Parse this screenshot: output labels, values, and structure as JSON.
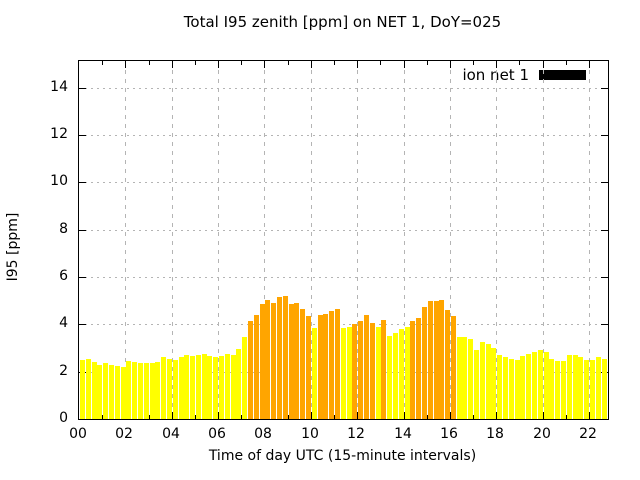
{
  "window": {
    "title": "Total I95 zenith [ppm] on NET 1, DoY=025"
  },
  "chart_data": {
    "type": "bar",
    "title": "Total I95 zenith [ppm] on NET 1, DoY=025",
    "xlabel": "Time of day UTC (15-minute intervals)",
    "ylabel": "I95 [ppm]",
    "ylim": [
      0,
      15.13
    ],
    "yticks": [
      0,
      2,
      4,
      6,
      8,
      10,
      12,
      14
    ],
    "xticks": [
      {
        "label": "00",
        "hour": 0
      },
      {
        "label": "02",
        "hour": 2
      },
      {
        "label": "04",
        "hour": 4
      },
      {
        "label": "06",
        "hour": 6
      },
      {
        "label": "08",
        "hour": 8
      },
      {
        "label": "10",
        "hour": 10
      },
      {
        "label": "12",
        "hour": 12
      },
      {
        "label": "14",
        "hour": 14
      },
      {
        "label": "16",
        "hour": 16
      },
      {
        "label": "18",
        "hour": 18
      },
      {
        "label": "20",
        "hour": 20
      },
      {
        "label": "22",
        "hour": 22
      }
    ],
    "x_hours_span": 22.82,
    "bar_interval_minutes": 15,
    "grid": true,
    "legend": {
      "label": "ion net 1",
      "swatch_color": "#000000",
      "position": "top-right"
    },
    "colors": {
      "y": "#ffff00",
      "o": "#ffa500"
    },
    "series": [
      {
        "name": "ion net 1",
        "points": [
          [
            "00:00",
            2.5,
            "y"
          ],
          [
            "00:15",
            2.55,
            "y"
          ],
          [
            "00:30",
            2.4,
            "y"
          ],
          [
            "00:45",
            2.3,
            "y"
          ],
          [
            "01:00",
            2.35,
            "y"
          ],
          [
            "01:15",
            2.3,
            "y"
          ],
          [
            "01:30",
            2.25,
            "y"
          ],
          [
            "01:45",
            2.2,
            "y"
          ],
          [
            "02:00",
            2.45,
            "y"
          ],
          [
            "02:15",
            2.4,
            "y"
          ],
          [
            "02:30",
            2.35,
            "y"
          ],
          [
            "02:45",
            2.35,
            "y"
          ],
          [
            "03:00",
            2.35,
            "y"
          ],
          [
            "03:15",
            2.4,
            "y"
          ],
          [
            "03:30",
            2.6,
            "y"
          ],
          [
            "03:45",
            2.55,
            "y"
          ],
          [
            "04:00",
            2.5,
            "y"
          ],
          [
            "04:15",
            2.6,
            "y"
          ],
          [
            "04:30",
            2.7,
            "y"
          ],
          [
            "04:45",
            2.65,
            "y"
          ],
          [
            "05:00",
            2.7,
            "y"
          ],
          [
            "05:15",
            2.75,
            "y"
          ],
          [
            "05:30",
            2.65,
            "y"
          ],
          [
            "05:45",
            2.6,
            "y"
          ],
          [
            "06:00",
            2.65,
            "y"
          ],
          [
            "06:15",
            2.75,
            "y"
          ],
          [
            "06:30",
            2.7,
            "y"
          ],
          [
            "06:45",
            2.95,
            "y"
          ],
          [
            "07:00",
            3.45,
            "y"
          ],
          [
            "07:15",
            4.15,
            "o"
          ],
          [
            "07:30",
            4.4,
            "o"
          ],
          [
            "07:45",
            4.85,
            "o"
          ],
          [
            "08:00",
            5.05,
            "o"
          ],
          [
            "08:15",
            4.9,
            "o"
          ],
          [
            "08:30",
            5.15,
            "o"
          ],
          [
            "08:45",
            5.2,
            "o"
          ],
          [
            "09:00",
            4.85,
            "o"
          ],
          [
            "09:15",
            4.9,
            "o"
          ],
          [
            "09:30",
            4.65,
            "o"
          ],
          [
            "09:45",
            4.35,
            "o"
          ],
          [
            "10:00",
            3.85,
            "y"
          ],
          [
            "10:15",
            4.4,
            "o"
          ],
          [
            "10:30",
            4.45,
            "o"
          ],
          [
            "10:45",
            4.55,
            "o"
          ],
          [
            "11:00",
            4.65,
            "o"
          ],
          [
            "11:15",
            3.85,
            "y"
          ],
          [
            "11:30",
            3.9,
            "y"
          ],
          [
            "11:45",
            4.0,
            "o"
          ],
          [
            "12:00",
            4.15,
            "o"
          ],
          [
            "12:15",
            4.4,
            "o"
          ],
          [
            "12:30",
            4.05,
            "o"
          ],
          [
            "12:45",
            3.9,
            "y"
          ],
          [
            "13:00",
            4.2,
            "o"
          ],
          [
            "13:15",
            3.5,
            "y"
          ],
          [
            "13:30",
            3.65,
            "y"
          ],
          [
            "13:45",
            3.8,
            "y"
          ],
          [
            "14:00",
            3.9,
            "y"
          ],
          [
            "14:15",
            4.15,
            "o"
          ],
          [
            "14:30",
            4.25,
            "o"
          ],
          [
            "14:45",
            4.75,
            "o"
          ],
          [
            "15:00",
            5.0,
            "o"
          ],
          [
            "15:15",
            5.0,
            "o"
          ],
          [
            "15:30",
            5.05,
            "o"
          ],
          [
            "15:45",
            4.6,
            "o"
          ],
          [
            "16:00",
            4.35,
            "o"
          ],
          [
            "16:15",
            3.45,
            "y"
          ],
          [
            "16:30",
            3.45,
            "y"
          ],
          [
            "16:45",
            3.4,
            "y"
          ],
          [
            "17:00",
            2.9,
            "y"
          ],
          [
            "17:15",
            3.25,
            "y"
          ],
          [
            "17:30",
            3.15,
            "y"
          ],
          [
            "17:45",
            3.0,
            "y"
          ],
          [
            "18:00",
            2.7,
            "y"
          ],
          [
            "18:15",
            2.6,
            "y"
          ],
          [
            "18:30",
            2.55,
            "y"
          ],
          [
            "18:45",
            2.5,
            "y"
          ],
          [
            "19:00",
            2.65,
            "y"
          ],
          [
            "19:15",
            2.75,
            "y"
          ],
          [
            "19:30",
            2.85,
            "y"
          ],
          [
            "19:45",
            2.9,
            "y"
          ],
          [
            "20:00",
            2.85,
            "y"
          ],
          [
            "20:15",
            2.55,
            "y"
          ],
          [
            "20:30",
            2.45,
            "y"
          ],
          [
            "20:45",
            2.45,
            "y"
          ],
          [
            "21:00",
            2.7,
            "y"
          ],
          [
            "21:15",
            2.7,
            "y"
          ],
          [
            "21:30",
            2.63,
            "y"
          ],
          [
            "21:45",
            2.5,
            "y"
          ],
          [
            "22:00",
            2.5,
            "y"
          ],
          [
            "22:15",
            2.6,
            "y"
          ],
          [
            "22:30",
            2.52,
            "y"
          ]
        ]
      }
    ]
  }
}
